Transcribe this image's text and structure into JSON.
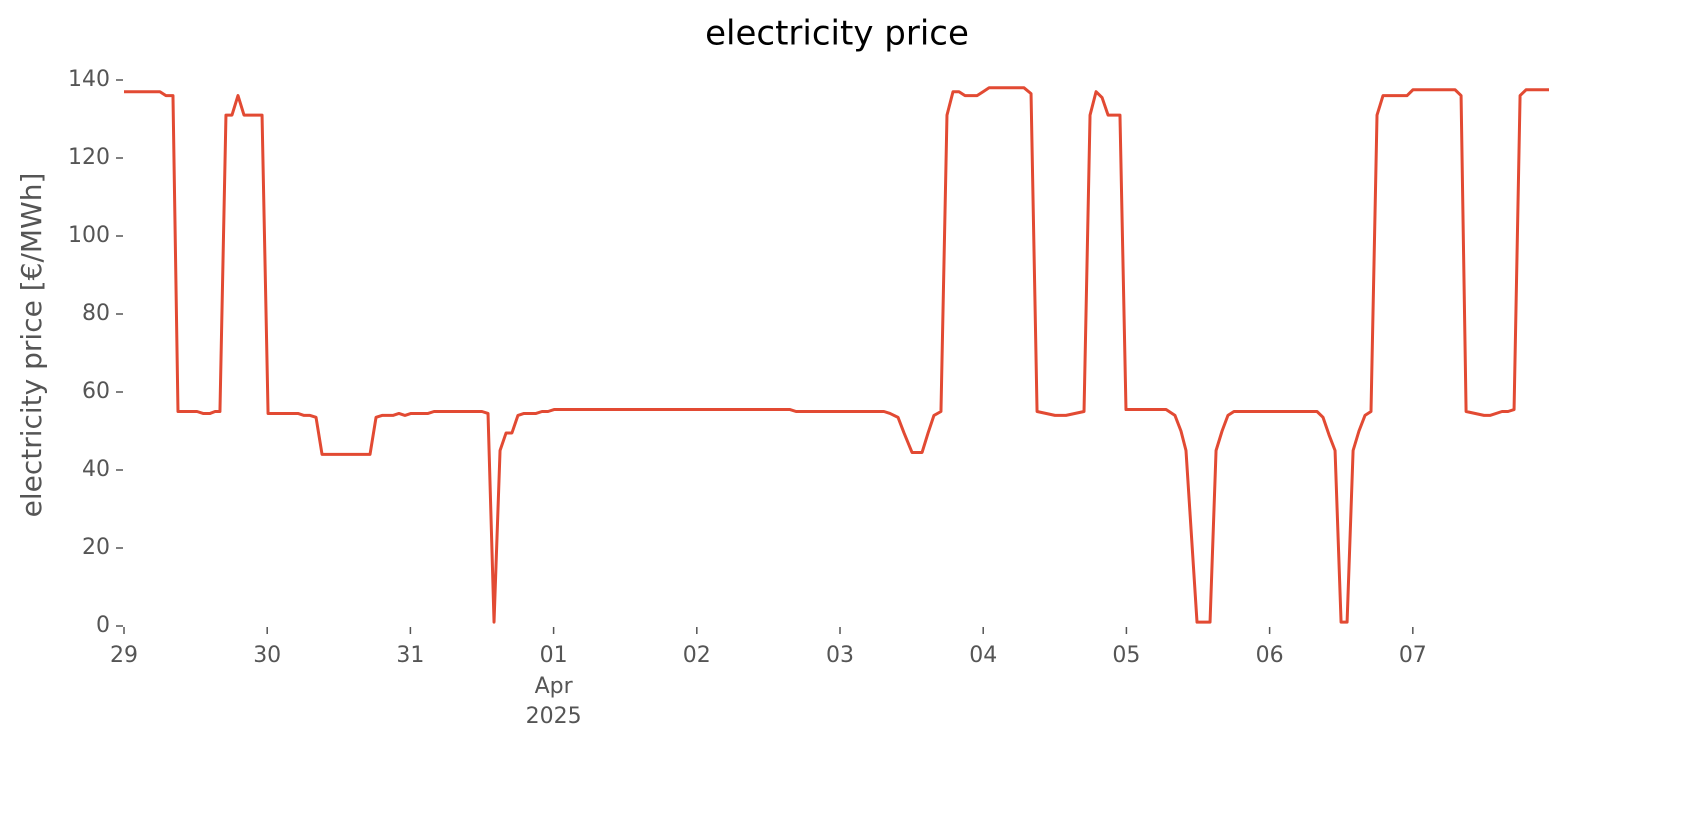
{
  "chart_data": {
    "type": "line",
    "title": "electricity price",
    "ylabel": "electricity price [€/MWh]",
    "x_month": "Apr",
    "x_year": "2025",
    "xlim": [
      0,
      9.951
    ],
    "xticks": [
      {
        "value": 0,
        "label": "29"
      },
      {
        "value": 1,
        "label": "30"
      },
      {
        "value": 2,
        "label": "31"
      },
      {
        "value": 3,
        "label": "01"
      },
      {
        "value": 4,
        "label": "02"
      },
      {
        "value": 5,
        "label": "03"
      },
      {
        "value": 6,
        "label": "04"
      },
      {
        "value": 7,
        "label": "05"
      },
      {
        "value": 8,
        "label": "06"
      },
      {
        "value": 9,
        "label": "07"
      }
    ],
    "ylim": [
      0,
      140
    ],
    "yticks": [
      0,
      20,
      40,
      60,
      80,
      100,
      120,
      140
    ],
    "grid": false,
    "x": [
      0,
      0.251,
      0.293,
      0.342,
      0.377,
      0.51,
      0.552,
      0.601,
      0.636,
      0.67,
      0.712,
      0.754,
      0.796,
      0.838,
      0.964,
      1.006,
      1.215,
      1.257,
      1.299,
      1.341,
      1.383,
      1.718,
      1.76,
      1.802,
      1.878,
      1.92,
      1.962,
      2.004,
      2.123,
      2.165,
      2.5,
      2.542,
      2.584,
      2.626,
      2.668,
      2.709,
      2.751,
      2.793,
      2.877,
      2.919,
      2.961,
      3.003,
      4.651,
      4.693,
      5.307,
      5.349,
      5.405,
      5.447,
      5.503,
      5.573,
      5.615,
      5.656,
      5.705,
      5.747,
      5.789,
      5.831,
      5.873,
      5.957,
      5.999,
      6.041,
      6.285,
      6.334,
      6.376,
      6.501,
      6.578,
      6.704,
      6.746,
      6.788,
      6.83,
      6.872,
      6.955,
      6.997,
      7.277,
      7.339,
      7.381,
      7.416,
      7.493,
      7.584,
      7.626,
      7.668,
      7.709,
      7.751,
      7.793,
      8.331,
      8.373,
      8.415,
      8.457,
      8.499,
      8.541,
      8.583,
      8.624,
      8.666,
      8.708,
      8.75,
      8.792,
      8.96,
      9.001,
      9.295,
      9.337,
      9.372,
      9.497,
      9.539,
      9.623,
      9.665,
      9.707,
      9.749,
      9.791,
      9.951
    ],
    "series": [
      {
        "name": "electricity price",
        "color": "#e24a33",
        "values": [
          137,
          137,
          136,
          136,
          55,
          55,
          54.5,
          54.5,
          55,
          55,
          131,
          131,
          136,
          131,
          131,
          54.5,
          54.5,
          54,
          54,
          53.5,
          44,
          44,
          53.5,
          54,
          54,
          54.5,
          54,
          54.5,
          54.5,
          55,
          55,
          54.5,
          1,
          45,
          49.5,
          49.5,
          54,
          54.5,
          54.5,
          55,
          55,
          55.5,
          55.5,
          55,
          55,
          54.5,
          53.5,
          49.5,
          44.5,
          44.5,
          49.5,
          54,
          55,
          131,
          137,
          137,
          136,
          136,
          137,
          138,
          138,
          136.5,
          55,
          54,
          54,
          55,
          131,
          137,
          135.5,
          131,
          131,
          55.5,
          55.5,
          54,
          50,
          45,
          1,
          1,
          45,
          50,
          54,
          55,
          55,
          55,
          53.5,
          49,
          45,
          1,
          1,
          45,
          50,
          54,
          55,
          131,
          136,
          136,
          137.5,
          137.5,
          136,
          55,
          54,
          54,
          55,
          55,
          55.5,
          136,
          137.5,
          137.5
        ]
      }
    ]
  }
}
